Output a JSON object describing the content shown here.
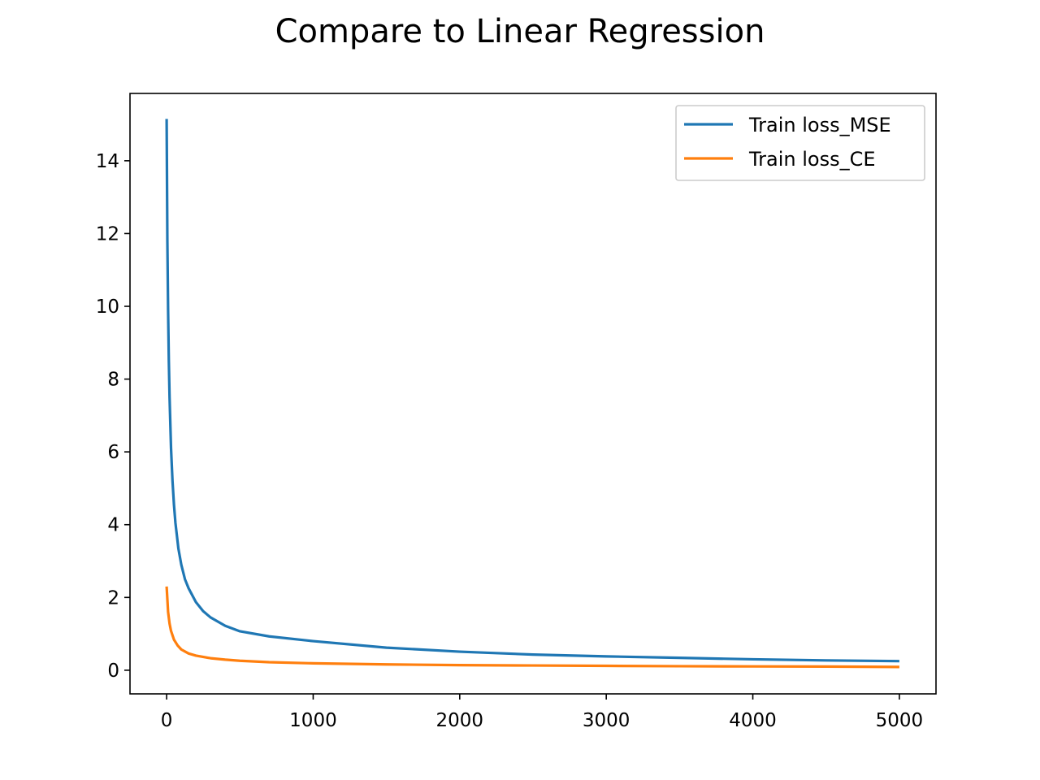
{
  "chart_data": {
    "type": "line",
    "title": "Compare to Linear Regression",
    "xlabel": "",
    "ylabel": "",
    "xlim": [
      -250,
      5250
    ],
    "ylim": [
      -0.65,
      15.85
    ],
    "grid": false,
    "legend_position": "top-right",
    "x_ticks": [
      0,
      1000,
      2000,
      3000,
      4000,
      5000
    ],
    "y_ticks": [
      0,
      2,
      4,
      6,
      8,
      10,
      12,
      14
    ],
    "series": [
      {
        "name": "Train loss_MSE",
        "color": "#1f77b4",
        "x": [
          0,
          5,
          10,
          15,
          20,
          30,
          40,
          50,
          60,
          80,
          100,
          125,
          150,
          200,
          250,
          300,
          400,
          500,
          700,
          1000,
          1500,
          2000,
          2500,
          3000,
          3500,
          4000,
          4500,
          5000
        ],
        "y": [
          15.15,
          11.8,
          9.9,
          8.5,
          7.5,
          6.1,
          5.2,
          4.55,
          4.05,
          3.35,
          2.9,
          2.5,
          2.25,
          1.87,
          1.62,
          1.45,
          1.22,
          1.07,
          0.93,
          0.8,
          0.62,
          0.51,
          0.43,
          0.38,
          0.34,
          0.3,
          0.27,
          0.25
        ]
      },
      {
        "name": "Train loss_CE",
        "color": "#ff7f0e",
        "x": [
          0,
          10,
          20,
          30,
          50,
          75,
          100,
          150,
          200,
          300,
          400,
          500,
          700,
          1000,
          1500,
          2000,
          2500,
          3000,
          3500,
          4000,
          4500,
          5000
        ],
        "y": [
          2.3,
          1.6,
          1.28,
          1.08,
          0.84,
          0.68,
          0.57,
          0.46,
          0.4,
          0.33,
          0.29,
          0.26,
          0.22,
          0.19,
          0.16,
          0.14,
          0.13,
          0.12,
          0.11,
          0.105,
          0.1,
          0.09
        ]
      }
    ]
  }
}
